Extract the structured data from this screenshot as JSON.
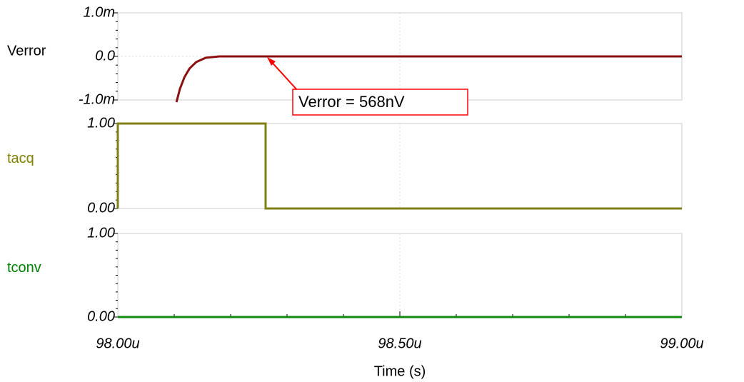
{
  "chart_data": [
    {
      "type": "line",
      "label_color": "#000000",
      "xlim": [
        98.0,
        99.0
      ],
      "ylim": [
        -0.001,
        0.001
      ],
      "yticks": [
        {
          "value": 0.001,
          "label": "1.0m"
        },
        {
          "value": 0,
          "label": "0.0"
        },
        {
          "value": -0.001,
          "label": "-1.0m"
        }
      ],
      "grid": true,
      "annotation": "Verror = 568nV",
      "series": [
        {
          "name": "Verror",
          "color": "#8b1010",
          "x": [
            98.104,
            98.11,
            98.118,
            98.127,
            98.139,
            98.156,
            98.18,
            99.0
          ],
          "values": [
            -0.00105,
            -0.00075,
            -0.00048,
            -0.00028,
            -0.00013,
            -3e-05,
            0,
            0
          ]
        }
      ]
    },
    {
      "type": "line",
      "label_color": "#808000",
      "xlim": [
        98.0,
        99.0
      ],
      "ylim": [
        0,
        1
      ],
      "yticks": [
        {
          "value": 1,
          "label": "1.00"
        },
        {
          "value": 0,
          "label": "0.00"
        }
      ],
      "grid": true,
      "series": [
        {
          "name": "tacq",
          "color": "#808015",
          "x": [
            98.0,
            98.0,
            98.262,
            98.262,
            99.0
          ],
          "values": [
            0,
            1,
            1,
            0,
            0
          ]
        }
      ]
    },
    {
      "type": "line",
      "label_color": "#008000",
      "xlim": [
        98.0,
        99.0
      ],
      "ylim": [
        0,
        1
      ],
      "yticks": [
        {
          "value": 1,
          "label": "1.00"
        },
        {
          "value": 0,
          "label": "0.00"
        }
      ],
      "grid": true,
      "xticks": [
        {
          "value": 98.0,
          "label": "98.00u"
        },
        {
          "value": 98.5,
          "label": "98.50u"
        },
        {
          "value": 99.0,
          "label": "99.00u"
        }
      ],
      "xlabel": "Time (s)",
      "series": [
        {
          "name": "tconv",
          "color": "#108a10",
          "x": [
            98.0,
            99.0
          ],
          "values": [
            0,
            0
          ]
        }
      ]
    }
  ]
}
